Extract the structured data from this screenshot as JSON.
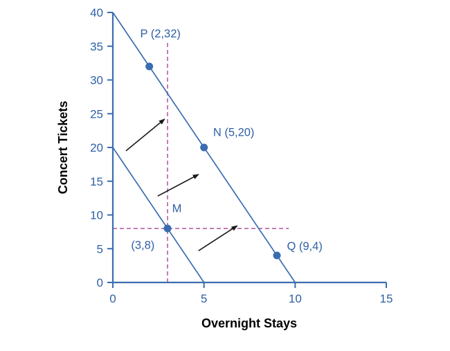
{
  "chart_data": {
    "type": "line",
    "title": "",
    "xlabel": "Overnight Stays",
    "ylabel": "Concert Tickets",
    "xlim": [
      0,
      15
    ],
    "ylim": [
      0,
      40
    ],
    "xticks": [
      0,
      5,
      10,
      15
    ],
    "yticks": [
      0,
      5,
      10,
      15,
      20,
      25,
      30,
      35,
      40
    ],
    "grid": false,
    "legend": "none",
    "series": [
      {
        "name": "original-budget-constraint",
        "points": [
          [
            0,
            20
          ],
          [
            5,
            0
          ]
        ]
      },
      {
        "name": "new-budget-constraint",
        "points": [
          [
            0,
            40
          ],
          [
            10,
            0
          ]
        ]
      }
    ],
    "data_points": [
      {
        "name": "P",
        "x": 2,
        "y": 32
      },
      {
        "name": "N",
        "x": 5,
        "y": 20
      },
      {
        "name": "M",
        "x": 3,
        "y": 8
      },
      {
        "name": "Q",
        "x": 9,
        "y": 4
      }
    ],
    "annotations": [
      {
        "text": "P (2,32)",
        "x": 1.5,
        "y": 36.3
      },
      {
        "text": "N (5,20)",
        "x": 5.5,
        "y": 21.7
      },
      {
        "text": "M",
        "x": 3.25,
        "y": 10.4
      },
      {
        "text": "(3,8)",
        "x": 1.0,
        "y": 5.0
      },
      {
        "text": "Q (9,4)",
        "x": 9.55,
        "y": 4.8
      }
    ],
    "dashed_guides": [
      {
        "name": "vertical-guide-x3",
        "from": [
          3,
          0
        ],
        "to": [
          3,
          35.5
        ]
      },
      {
        "name": "horizontal-guide-y8",
        "from": [
          0,
          8
        ],
        "to": [
          9.65,
          8
        ]
      }
    ],
    "shift_arrows": [
      {
        "from": [
          0.72,
          19.5
        ],
        "to": [
          2.84,
          24.2
        ]
      },
      {
        "from": [
          2.46,
          12.8
        ],
        "to": [
          4.7,
          16.0
        ]
      },
      {
        "from": [
          4.7,
          4.7
        ],
        "to": [
          6.82,
          8.4
        ]
      }
    ],
    "colors": {
      "line": "#3a6cb0",
      "axis": "#3a6cb0",
      "point": "#3a6cb0",
      "tick_label": "#2e5fa6",
      "axis_label": "#1f57a4",
      "dashed": "#b0519d",
      "arrow": "#1a1a1a"
    }
  }
}
